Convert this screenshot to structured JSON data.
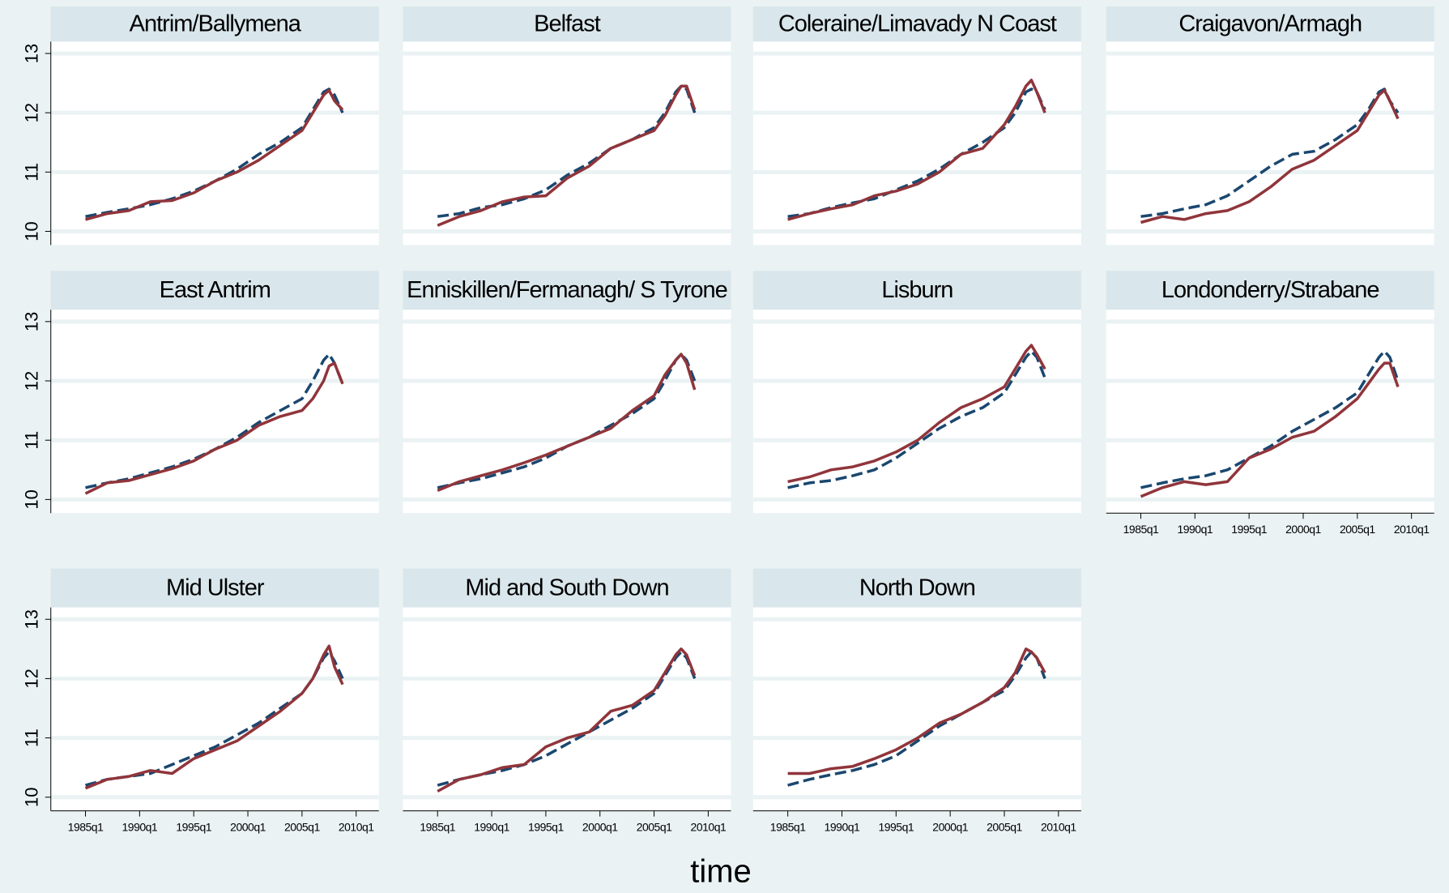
{
  "axes": {
    "xlabel": "time",
    "xlim": [
      1981.8,
      2012.1
    ],
    "ylim": [
      9.77,
      13.2
    ],
    "xticks": [
      {
        "value": 1985,
        "label": "1985q1"
      },
      {
        "value": 1990,
        "label": "1990q1"
      },
      {
        "value": 1995,
        "label": "1995q1"
      },
      {
        "value": 2000,
        "label": "2000q1"
      },
      {
        "value": 2005,
        "label": "2005q1"
      },
      {
        "value": 2010,
        "label": "2010q1"
      }
    ],
    "yticks": [
      10,
      11,
      12,
      13
    ],
    "grid": true
  },
  "chart_data": [
    {
      "type": "line",
      "title": "Antrim/Ballymena",
      "x": [
        1985,
        1987,
        1989,
        1991,
        1993,
        1995,
        1997,
        1999,
        2001,
        2003,
        2005,
        2006,
        2007,
        2007.5,
        2008,
        2008.75
      ],
      "series": [
        {
          "color": "#1a476f",
          "style": "dashed",
          "values": [
            10.25,
            10.32,
            10.38,
            10.45,
            10.55,
            10.68,
            10.85,
            11.05,
            11.3,
            11.5,
            11.75,
            12.05,
            12.35,
            12.4,
            12.3,
            12.0
          ]
        },
        {
          "color": "#90353b",
          "style": "solid",
          "values": [
            10.2,
            10.3,
            10.35,
            10.5,
            10.52,
            10.65,
            10.85,
            11.0,
            11.2,
            11.45,
            11.7,
            12.0,
            12.3,
            12.38,
            12.2,
            12.05
          ]
        }
      ]
    },
    {
      "type": "line",
      "title": "Belfast",
      "x": [
        1985,
        1987,
        1989,
        1991,
        1993,
        1995,
        1997,
        1999,
        2001,
        2003,
        2005,
        2006,
        2007,
        2007.5,
        2008,
        2008.75
      ],
      "series": [
        {
          "color": "#1a476f",
          "style": "dashed",
          "values": [
            10.25,
            10.3,
            10.4,
            10.45,
            10.55,
            10.7,
            10.95,
            11.15,
            11.4,
            11.55,
            11.75,
            12.0,
            12.35,
            12.45,
            12.4,
            12.0
          ]
        },
        {
          "color": "#90353b",
          "style": "solid",
          "values": [
            10.1,
            10.25,
            10.35,
            10.5,
            10.58,
            10.6,
            10.9,
            11.1,
            11.4,
            11.55,
            11.7,
            11.95,
            12.3,
            12.45,
            12.45,
            12.05
          ]
        }
      ]
    },
    {
      "type": "line",
      "title": "Coleraine/Limavady N Coast",
      "x": [
        1985,
        1987,
        1989,
        1991,
        1993,
        1995,
        1997,
        1999,
        2001,
        2003,
        2005,
        2006,
        2007,
        2007.5,
        2008,
        2008.75
      ],
      "series": [
        {
          "color": "#1a476f",
          "style": "dashed",
          "values": [
            10.25,
            10.3,
            10.4,
            10.48,
            10.55,
            10.7,
            10.85,
            11.05,
            11.3,
            11.5,
            11.75,
            12.0,
            12.35,
            12.4,
            12.35,
            12.05
          ]
        },
        {
          "color": "#90353b",
          "style": "solid",
          "values": [
            10.2,
            10.3,
            10.38,
            10.45,
            10.6,
            10.68,
            10.8,
            11.0,
            11.3,
            11.4,
            11.8,
            12.1,
            12.45,
            12.55,
            12.35,
            12.0
          ]
        }
      ]
    },
    {
      "type": "line",
      "title": "Craigavon/Armagh",
      "x": [
        1985,
        1987,
        1989,
        1991,
        1993,
        1995,
        1997,
        1999,
        2001,
        2003,
        2005,
        2006,
        2007,
        2007.5,
        2008,
        2008.75
      ],
      "series": [
        {
          "color": "#1a476f",
          "style": "dashed",
          "values": [
            10.25,
            10.3,
            10.38,
            10.45,
            10.6,
            10.85,
            11.1,
            11.3,
            11.35,
            11.55,
            11.8,
            12.05,
            12.35,
            12.4,
            12.2,
            12.0
          ]
        },
        {
          "color": "#90353b",
          "style": "solid",
          "values": [
            10.15,
            10.25,
            10.2,
            10.3,
            10.35,
            10.5,
            10.75,
            11.05,
            11.2,
            11.45,
            11.7,
            12.0,
            12.3,
            12.38,
            12.2,
            11.9
          ]
        }
      ]
    },
    {
      "type": "line",
      "title": "East Antrim",
      "x": [
        1985,
        1987,
        1989,
        1991,
        1993,
        1995,
        1997,
        1999,
        2001,
        2003,
        2005,
        2006,
        2007,
        2007.5,
        2008,
        2008.75
      ],
      "series": [
        {
          "color": "#1a476f",
          "style": "dashed",
          "values": [
            10.2,
            10.28,
            10.35,
            10.45,
            10.55,
            10.68,
            10.85,
            11.05,
            11.3,
            11.5,
            11.7,
            12.0,
            12.35,
            12.45,
            12.3,
            11.95
          ]
        },
        {
          "color": "#90353b",
          "style": "solid",
          "values": [
            10.1,
            10.28,
            10.32,
            10.42,
            10.52,
            10.65,
            10.85,
            11.0,
            11.25,
            11.4,
            11.5,
            11.7,
            12.0,
            12.25,
            12.3,
            11.95
          ]
        }
      ]
    },
    {
      "type": "line",
      "title": "Enniskillen/Fermanagh/ S Tyrone",
      "x": [
        1985,
        1987,
        1989,
        1991,
        1993,
        1995,
        1997,
        1999,
        2001,
        2003,
        2005,
        2006,
        2007,
        2007.5,
        2008,
        2008.75
      ],
      "series": [
        {
          "color": "#1a476f",
          "style": "dashed",
          "values": [
            10.2,
            10.28,
            10.35,
            10.45,
            10.55,
            10.7,
            10.9,
            11.05,
            11.25,
            11.45,
            11.7,
            12.0,
            12.35,
            12.45,
            12.35,
            12.0
          ]
        },
        {
          "color": "#90353b",
          "style": "solid",
          "values": [
            10.15,
            10.3,
            10.4,
            10.5,
            10.62,
            10.75,
            10.9,
            11.05,
            11.2,
            11.5,
            11.75,
            12.1,
            12.35,
            12.45,
            12.3,
            11.85
          ]
        }
      ]
    },
    {
      "type": "line",
      "title": "Lisburn",
      "x": [
        1985,
        1987,
        1989,
        1991,
        1993,
        1995,
        1997,
        1999,
        2001,
        2003,
        2005,
        2006,
        2007,
        2007.5,
        2008,
        2008.75
      ],
      "series": [
        {
          "color": "#1a476f",
          "style": "dashed",
          "values": [
            10.2,
            10.28,
            10.32,
            10.4,
            10.5,
            10.7,
            10.95,
            11.2,
            11.4,
            11.55,
            11.8,
            12.1,
            12.4,
            12.5,
            12.4,
            12.05
          ]
        },
        {
          "color": "#90353b",
          "style": "solid",
          "values": [
            10.3,
            10.38,
            10.5,
            10.55,
            10.65,
            10.8,
            11.0,
            11.3,
            11.55,
            11.7,
            11.9,
            12.2,
            12.5,
            12.6,
            12.45,
            12.2
          ]
        }
      ]
    },
    {
      "type": "line",
      "title": "Londonderry/Strabane",
      "x": [
        1985,
        1987,
        1989,
        1991,
        1993,
        1995,
        1997,
        1999,
        2001,
        2003,
        2005,
        2006,
        2007,
        2007.5,
        2008,
        2008.75
      ],
      "series": [
        {
          "color": "#1a476f",
          "style": "dashed",
          "values": [
            10.2,
            10.28,
            10.35,
            10.4,
            10.5,
            10.7,
            10.9,
            11.15,
            11.35,
            11.55,
            11.8,
            12.1,
            12.4,
            12.5,
            12.4,
            12.0
          ]
        },
        {
          "color": "#90353b",
          "style": "solid",
          "values": [
            10.05,
            10.2,
            10.3,
            10.25,
            10.3,
            10.7,
            10.85,
            11.05,
            11.15,
            11.4,
            11.7,
            11.95,
            12.2,
            12.3,
            12.3,
            11.9
          ]
        }
      ]
    },
    {
      "type": "line",
      "title": "Mid Ulster",
      "x": [
        1985,
        1987,
        1989,
        1991,
        1993,
        1995,
        1997,
        1999,
        2001,
        2003,
        2005,
        2006,
        2007,
        2007.5,
        2008,
        2008.75
      ],
      "series": [
        {
          "color": "#1a476f",
          "style": "dashed",
          "values": [
            10.2,
            10.3,
            10.35,
            10.4,
            10.55,
            10.7,
            10.85,
            11.05,
            11.25,
            11.5,
            11.75,
            12.0,
            12.35,
            12.45,
            12.3,
            12.0
          ]
        },
        {
          "color": "#90353b",
          "style": "solid",
          "values": [
            10.15,
            10.3,
            10.35,
            10.45,
            10.4,
            10.65,
            10.8,
            10.95,
            11.2,
            11.45,
            11.75,
            12.0,
            12.4,
            12.55,
            12.2,
            11.9
          ]
        }
      ]
    },
    {
      "type": "line",
      "title": "Mid and South Down",
      "x": [
        1985,
        1987,
        1989,
        1991,
        1993,
        1995,
        1997,
        1999,
        2001,
        2003,
        2005,
        2006,
        2007,
        2007.5,
        2008,
        2008.75
      ],
      "series": [
        {
          "color": "#1a476f",
          "style": "dashed",
          "values": [
            10.2,
            10.3,
            10.38,
            10.45,
            10.55,
            10.7,
            10.9,
            11.1,
            11.3,
            11.5,
            11.75,
            12.05,
            12.35,
            12.45,
            12.35,
            12.0
          ]
        },
        {
          "color": "#90353b",
          "style": "solid",
          "values": [
            10.1,
            10.3,
            10.38,
            10.5,
            10.55,
            10.85,
            11.0,
            11.1,
            11.45,
            11.55,
            11.8,
            12.1,
            12.4,
            12.5,
            12.4,
            12.05
          ]
        }
      ]
    },
    {
      "type": "line",
      "title": "North Down",
      "x": [
        1985,
        1987,
        1989,
        1991,
        1993,
        1995,
        1997,
        1999,
        2001,
        2003,
        2005,
        2006,
        2007,
        2007.5,
        2008,
        2008.75
      ],
      "series": [
        {
          "color": "#1a476f",
          "style": "dashed",
          "values": [
            10.2,
            10.3,
            10.38,
            10.45,
            10.55,
            10.7,
            10.95,
            11.2,
            11.4,
            11.6,
            11.8,
            12.05,
            12.35,
            12.45,
            12.35,
            12.0
          ]
        },
        {
          "color": "#90353b",
          "style": "solid",
          "values": [
            10.4,
            10.4,
            10.48,
            10.52,
            10.65,
            10.8,
            11.0,
            11.25,
            11.4,
            11.6,
            11.85,
            12.1,
            12.5,
            12.45,
            12.35,
            12.1
          ]
        }
      ]
    }
  ]
}
